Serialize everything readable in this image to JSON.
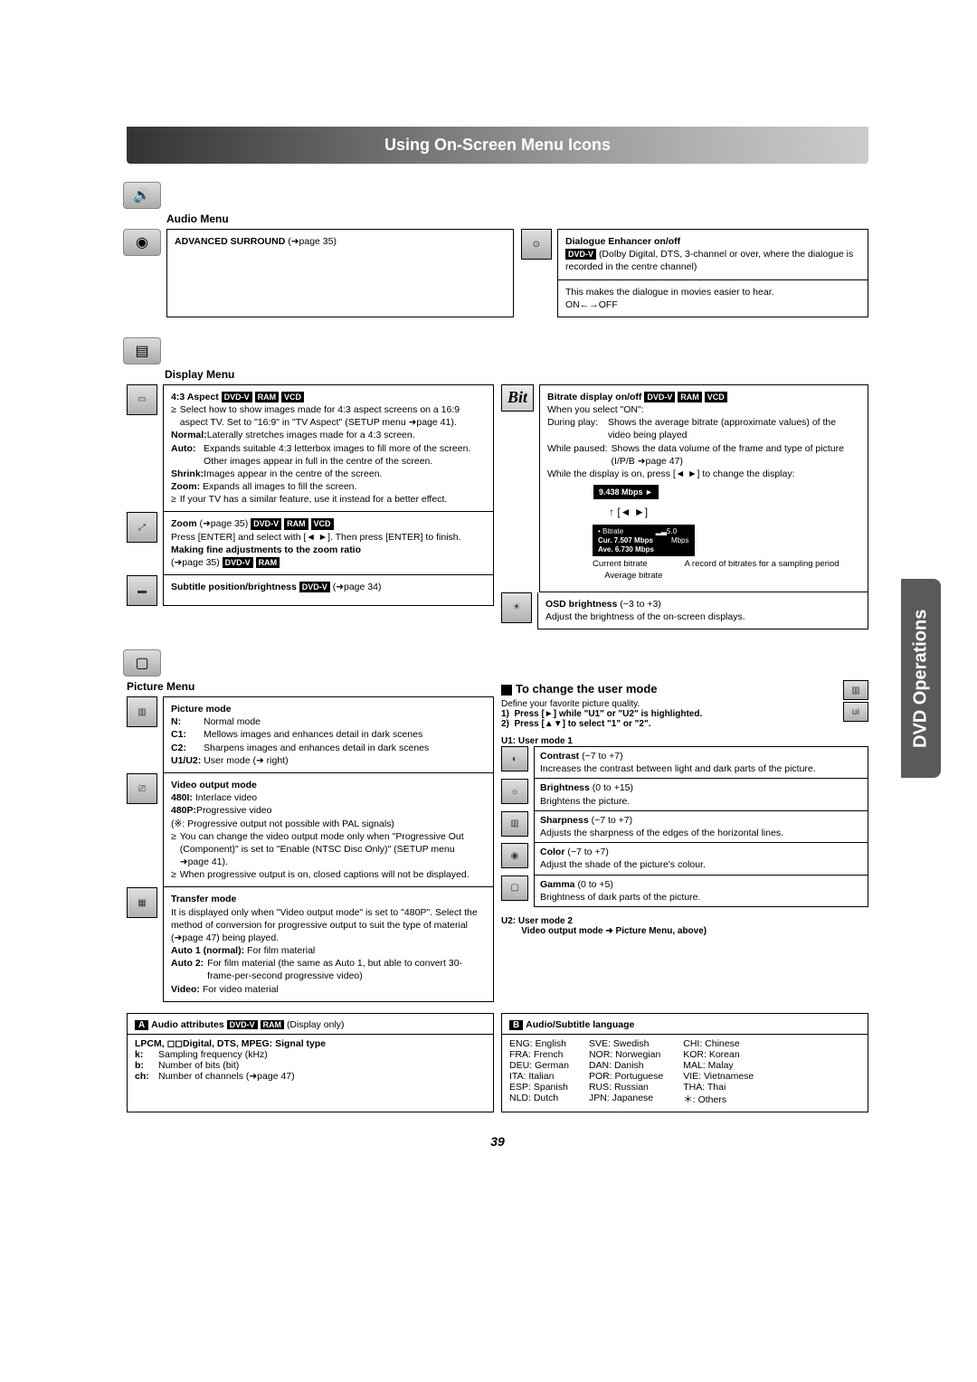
{
  "page_title": "Using On-Screen Menu Icons",
  "side_tab": "DVD Operations",
  "page_number": "39",
  "audio_menu": {
    "label": "Audio Menu",
    "advanced_surround": {
      "title": "ADVANCED SURROUND",
      "ref": "(➜page 35)"
    },
    "dialogue_enhancer": {
      "title": "Dialogue Enhancer on/off",
      "tags": [
        "DVD-V"
      ],
      "desc1": "(Dolby Digital, DTS, 3-channel or over, where the dialogue is recorded in the centre channel)",
      "desc2": "This makes the dialogue in movies easier to hear.",
      "toggle": "ON←→OFF"
    }
  },
  "display_menu": {
    "label": "Display Menu",
    "aspect": {
      "title": "4:3 Aspect",
      "tags": [
        "DVD-V",
        "RAM",
        "VCD"
      ],
      "bullet1": "Select how to show images made for 4:3 aspect screens on a 16:9 aspect TV. Set to \"16:9\" in \"TV Aspect\" (SETUP menu ➜page 41).",
      "normal_label": "Normal:",
      "normal": "Laterally stretches images made for a 4:3 screen.",
      "auto_label": "Auto:",
      "auto": "Expands suitable 4:3 letterbox images to fill more of the screen. Other images appear in full in the centre of the screen.",
      "shrink_label": "Shrink:",
      "shrink": "Images appear in the centre of the screen.",
      "zoom_label": "Zoom:",
      "zoom": "Expands all images to fill the screen.",
      "bullet2": "If your TV has a similar feature, use it instead for a better effect."
    },
    "zoom": {
      "title": "Zoom",
      "ref": "(➜page 35)",
      "tags": [
        "DVD-V",
        "RAM",
        "VCD"
      ],
      "desc1": "Press [ENTER] and select with [◄ ►]. Then press [ENTER] to finish.",
      "adjust_title": "Making fine adjustments to the zoom ratio",
      "adjust_ref": "(➜page 35)",
      "adjust_tags": [
        "DVD-V",
        "RAM"
      ]
    },
    "subtitle": {
      "title": "Subtitle position/brightness",
      "tags": [
        "DVD-V"
      ],
      "ref": "(➜page 34)"
    },
    "bitrate": {
      "title": "Bitrate display on/off",
      "tags": [
        "DVD-V",
        "RAM",
        "VCD"
      ],
      "line1": "When you select \"ON\":",
      "play_label": "During play:",
      "play": "Shows the average bitrate (approximate values) of the video being played",
      "pause_label": "While paused:",
      "pause": "Shows the data volume of the frame and type of picture (I/P/B ➜page 47)",
      "line2": "While the display is on, press [◄ ►] to change the display:",
      "box1": "9.438 Mbps  ►",
      "arrows": "[◄ ►]",
      "box2_l1": "• Bitrate",
      "box2_l2": "Cur.  7.507 Mbps",
      "box2_l3": "Ave.  6.730 Mbps",
      "box2_r1": "5.0",
      "box2_r2": "Mbps",
      "label_cur": "Current bitrate",
      "label_avg": "Average bitrate",
      "label_rec": "A record of bitrates for a sampling period"
    },
    "osd": {
      "title": "OSD brightness",
      "range": "(−3 to +3)",
      "desc": "Adjust the brightness of the on-screen displays."
    }
  },
  "picture_menu": {
    "label": "Picture Menu",
    "mode": {
      "title": "Picture mode",
      "n_label": "N:",
      "n": "Normal mode",
      "c1_label": "C1:",
      "c1": "Mellows images and enhances detail in dark scenes",
      "c2_label": "C2:",
      "c2": "Sharpens images and enhances detail in dark scenes",
      "u_label": "U1/U2:",
      "u": "User mode (➜ right)"
    },
    "video_out": {
      "title": "Video output mode",
      "l480i_label": "480I:",
      "l480i": "Interlace video",
      "l480p_label": "480P:",
      "l480p": "Progressive video",
      "note1": "(※:   Progressive output not possible with PAL signals)",
      "bullet1": "You can change the video output mode only when \"Progressive Out (Component)\" is set to \"Enable (NTSC Disc Only)\" (SETUP menu ➜page 41).",
      "bullet2": "When progressive output is on, closed captions will not be displayed."
    },
    "transfer": {
      "title": "Transfer mode",
      "desc": "It is displayed only when \"Video output mode\" is set to \"480P\". Select the method of conversion for progressive output to suit the type of material (➜page 47) being played.",
      "a1_label": "Auto 1 (normal):",
      "a1": "For film material",
      "a2_label": "Auto 2:",
      "a2": "For film material (the same as Auto 1, but able to convert 30-frame-per-second progressive video)",
      "v_label": "Video:",
      "v": "For video material"
    }
  },
  "user_mode": {
    "heading": "To change the user mode",
    "intro": "Define your favorite picture quality.",
    "step1": "Press [►] while \"U1\" or \"U2\" is highlighted.",
    "step2": "Press [▲▼] to select \"1\" or \"2\".",
    "u1_label": "U1:   User mode 1",
    "contrast": {
      "title": "Contrast",
      "range": "(−7 to +7)",
      "desc": "Increases the contrast between light and dark parts of the picture."
    },
    "brightness": {
      "title": "Brightness",
      "range": "(0 to +15)",
      "desc": "Brightens the picture."
    },
    "sharpness": {
      "title": "Sharpness",
      "range": "(−7 to +7)",
      "desc": "Adjusts the sharpness of the edges of the horizontal lines."
    },
    "color": {
      "title": "Color",
      "range": "(−7 to +7)",
      "desc": "Adjust the shade of the picture's colour."
    },
    "gamma": {
      "title": "Gamma",
      "range": "(0 to +5)",
      "desc": "Brightness of dark parts of the picture."
    },
    "u2_label": "U2:   User mode 2",
    "u2_note": "Video output mode ➜ Picture Menu, above)"
  },
  "audio_attrs": {
    "letter": "A",
    "title": "Audio attributes",
    "tags": [
      "DVD-V",
      "RAM"
    ],
    "note": "(Display only)",
    "line1": "LPCM, ◻◻Digital, DTS, MPEG: Signal type",
    "k_label": "k:",
    "k": "Sampling frequency (kHz)",
    "b_label": "b:",
    "b": "Number of bits (bit)",
    "ch_label": "ch:",
    "ch": "Number of channels (➜page 47)"
  },
  "lang": {
    "letter": "B",
    "title": "Audio/Subtitle language",
    "col1": [
      [
        "ENG:",
        "English"
      ],
      [
        "FRA:",
        "French"
      ],
      [
        "DEU:",
        "German"
      ],
      [
        "ITA:",
        "Italian"
      ],
      [
        "ESP:",
        "Spanish"
      ],
      [
        "NLD:",
        "Dutch"
      ]
    ],
    "col2": [
      [
        "SVE:",
        "Swedish"
      ],
      [
        "NOR:",
        "Norwegian"
      ],
      [
        "DAN:",
        "Danish"
      ],
      [
        "POR:",
        "Portuguese"
      ],
      [
        "RUS:",
        "Russian"
      ],
      [
        "JPN:",
        "Japanese"
      ]
    ],
    "col3": [
      [
        "CHI:",
        "Chinese"
      ],
      [
        "KOR:",
        "Korean"
      ],
      [
        "MAL:",
        "Malay"
      ],
      [
        "VIE:",
        "Vietnamese"
      ],
      [
        "THA:",
        "Thai"
      ],
      [
        "＊:",
        "Others"
      ]
    ]
  }
}
